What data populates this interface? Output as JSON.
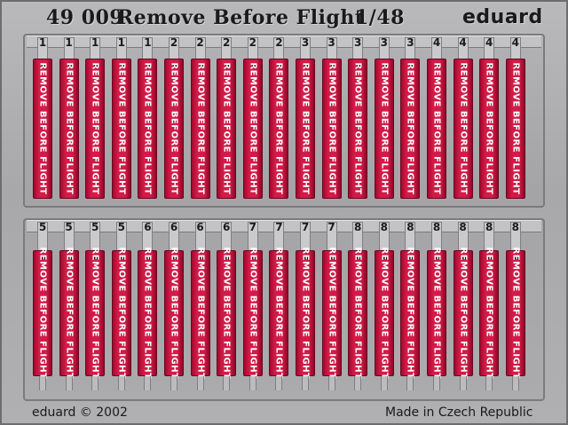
{
  "header": {
    "code": "49 009",
    "title": "Remove Before Flight",
    "scale": "1/48",
    "brand": "eduard"
  },
  "footer": {
    "copyright": "eduard © 2002",
    "origin": "Made in Czech Republic"
  },
  "colors": {
    "fret": "#b0b0b2",
    "tag": "#d21c48",
    "lettering": "#ffffff"
  },
  "rows": [
    {
      "tags": [
        {
          "number": "1",
          "text": "REMOVE BEFORE FLIGHT"
        },
        {
          "number": "1",
          "text": "REMOVE BEFORE FLIGHT"
        },
        {
          "number": "1",
          "text": "REMOVE BEFORE FLIGHT"
        },
        {
          "number": "1",
          "text": "REMOVE BEFORE FLIGHT"
        },
        {
          "number": "1",
          "text": "REMOVE BEFORE FLIGHT"
        },
        {
          "number": "2",
          "text": "REMOVE BEFORE FLIGHT"
        },
        {
          "number": "2",
          "text": "REMOVE BEFORE FLIGHT"
        },
        {
          "number": "2",
          "text": "REMOVE BEFORE FLIGHT"
        },
        {
          "number": "2",
          "text": "REMOVE BEFORE FLIGHT"
        },
        {
          "number": "2",
          "text": "REMOVE BEFORE FLIGHT"
        },
        {
          "number": "3",
          "text": "REMOVE BEFORE FLIGHT"
        },
        {
          "number": "3",
          "text": "REMOVE BEFORE FLIGHT"
        },
        {
          "number": "3",
          "text": "REMOVE BEFORE FLIGHT"
        },
        {
          "number": "3",
          "text": "REMOVE BEFORE FLIGHT"
        },
        {
          "number": "3",
          "text": "REMOVE BEFORE FLIGHT"
        },
        {
          "number": "4",
          "text": "REMOVE BEFORE FLIGHT"
        },
        {
          "number": "4",
          "text": "REMOVE BEFORE FLIGHT"
        },
        {
          "number": "4",
          "text": "REMOVE BEFORE FLIGHT"
        },
        {
          "number": "4",
          "text": "REMOVE BEFORE FLIGHT"
        }
      ]
    },
    {
      "tags": [
        {
          "number": "5",
          "text": "REMOVE BEFORE FLIGHT"
        },
        {
          "number": "5",
          "text": "REMOVE BEFORE FLIGHT"
        },
        {
          "number": "5",
          "text": "REMOVE BEFORE FLIGHT"
        },
        {
          "number": "5",
          "text": "REMOVE BEFORE FLIGHT"
        },
        {
          "number": "6",
          "text": "REMOVE BEFORE FLIGHT"
        },
        {
          "number": "6",
          "text": "REMOVE BEFORE FLIGHT"
        },
        {
          "number": "6",
          "text": "REMOVE BEFORE FLIGHT"
        },
        {
          "number": "6",
          "text": "REMOVE BEFORE FLIGHT"
        },
        {
          "number": "7",
          "text": "REMOVE BEFORE FLIGHT"
        },
        {
          "number": "7",
          "text": "REMOVE BEFORE FLIGHT"
        },
        {
          "number": "7",
          "text": "REMOVE BEFORE FLIGHT"
        },
        {
          "number": "7",
          "text": "REMOVE BEFORE FLIGHT"
        },
        {
          "number": "8",
          "text": "REMOVE BEFORE FLIGHT"
        },
        {
          "number": "8",
          "text": "REMOVE BEFORE FLIGHT"
        },
        {
          "number": "8",
          "text": "REMOVE BEFORE FLIGHT"
        },
        {
          "number": "8",
          "text": "REMOVE BEFORE FLIGHT"
        },
        {
          "number": "8",
          "text": "REMOVE BEFORE FLIGHT"
        },
        {
          "number": "8",
          "text": "REMOVE BEFORE FLIGHT"
        },
        {
          "number": "8",
          "text": "REMOVE BEFORE FLIGHT"
        }
      ]
    }
  ]
}
